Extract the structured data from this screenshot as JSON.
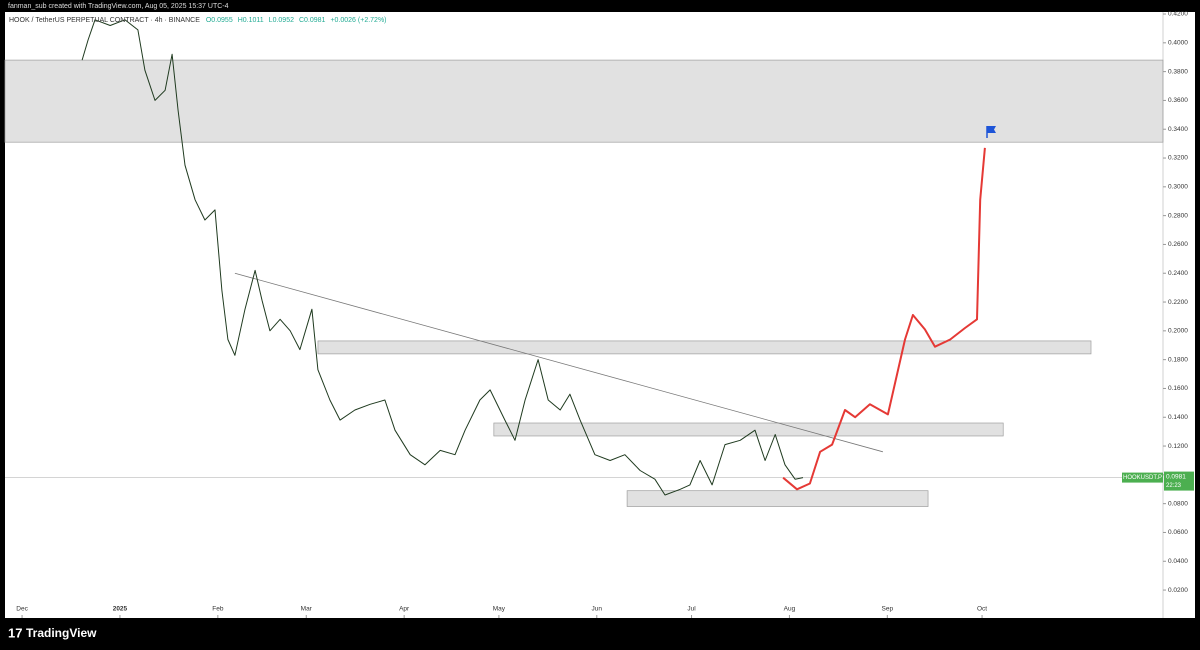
{
  "chart_data": {
    "type": "line",
    "attribution": "fanman_sub created with TradingView.com, Aug 05, 2025 15:37 UTC-4",
    "title": "HOOK / TetherUS PERPETUAL CONTRACT · 4h · BINANCE",
    "ohlc": [
      "O0.0955",
      "H0.1011",
      "L0.0952",
      "C0.0981",
      "+0.0026 (+2.72%)"
    ],
    "ohlc_color": "#22ab94",
    "brand": "TradingView",
    "xlim": [
      -5.4,
      361.3
    ],
    "xticks": [
      {
        "value": 0,
        "label": "Dec"
      },
      {
        "value": 31,
        "label": "2025"
      },
      {
        "value": 62,
        "label": "Feb"
      },
      {
        "value": 90,
        "label": "Mar"
      },
      {
        "value": 121,
        "label": "Apr"
      },
      {
        "value": 151,
        "label": "May"
      },
      {
        "value": 182,
        "label": "Jun"
      },
      {
        "value": 212,
        "label": "Jul"
      },
      {
        "value": 243,
        "label": "Aug"
      },
      {
        "value": 274,
        "label": "Sep"
      },
      {
        "value": 304,
        "label": "Oct"
      }
    ],
    "ylim": [
      0.0006,
      0.4214
    ],
    "yticks": [
      {
        "value": 0.42,
        "label": "0.4200"
      },
      {
        "value": 0.4,
        "label": "0.4000"
      },
      {
        "value": 0.38,
        "label": "0.3800"
      },
      {
        "value": 0.36,
        "label": "0.3600"
      },
      {
        "value": 0.34,
        "label": "0.3400"
      },
      {
        "value": 0.32,
        "label": "0.3200"
      },
      {
        "value": 0.3,
        "label": "0.3000"
      },
      {
        "value": 0.28,
        "label": "0.2800"
      },
      {
        "value": 0.26,
        "label": "0.2600"
      },
      {
        "value": 0.24,
        "label": "0.2400"
      },
      {
        "value": 0.22,
        "label": "0.2200"
      },
      {
        "value": 0.2,
        "label": "0.2000"
      },
      {
        "value": 0.18,
        "label": "0.1800"
      },
      {
        "value": 0.16,
        "label": "0.1600"
      },
      {
        "value": 0.14,
        "label": "0.1400"
      },
      {
        "value": 0.12,
        "label": "0.1200"
      },
      {
        "value": 0.1,
        "label": "0.1000"
      },
      {
        "value": 0.08,
        "label": "0.0800"
      },
      {
        "value": 0.06,
        "label": "0.0600"
      },
      {
        "value": 0.04,
        "label": "0.0400"
      },
      {
        "value": 0.02,
        "label": "0.0200"
      }
    ],
    "series": [
      {
        "color": "#1f3a1f",
        "x": [
          19.0,
          20.9,
          23.1,
          27.9,
          32.6,
          36.7,
          38.9,
          42.1,
          45.3,
          47.5,
          49.4,
          51.6,
          54.8,
          57.9,
          61.1,
          63.3,
          65.2,
          67.4,
          70.6,
          73.8,
          76.0,
          78.5,
          81.7,
          84.9,
          88.0,
          91.8,
          93.7,
          97.5,
          100.7,
          105.4,
          110.2,
          114.9,
          118.1,
          122.9,
          127.6,
          132.4,
          137.1,
          140.3,
          145.0,
          148.2,
          152.9,
          156.1,
          159.3,
          163.4,
          166.6,
          170.4,
          173.5,
          176.7,
          181.4,
          186.2,
          190.9,
          195.7,
          200.4,
          203.6,
          208.4,
          211.5,
          214.7,
          218.5,
          222.6,
          227.4,
          232.1,
          235.3,
          238.5,
          241.6,
          244.8,
          247.3
        ],
        "values": [
          0.388,
          0.402,
          0.416,
          0.412,
          0.416,
          0.409,
          0.381,
          0.36,
          0.367,
          0.392,
          0.353,
          0.315,
          0.291,
          0.277,
          0.284,
          0.228,
          0.194,
          0.183,
          0.215,
          0.242,
          0.221,
          0.2,
          0.208,
          0.2,
          0.187,
          0.215,
          0.173,
          0.152,
          0.138,
          0.145,
          0.149,
          0.152,
          0.131,
          0.114,
          0.107,
          0.117,
          0.114,
          0.131,
          0.152,
          0.159,
          0.138,
          0.124,
          0.152,
          0.18,
          0.152,
          0.145,
          0.156,
          0.138,
          0.114,
          0.11,
          0.114,
          0.103,
          0.097,
          0.086,
          0.09,
          0.093,
          0.11,
          0.093,
          0.121,
          0.124,
          0.131,
          0.11,
          0.128,
          0.107,
          0.097,
          0.0981
        ]
      },
      {
        "color": "#e53935",
        "x": [
          241.0,
          245.4,
          249.5,
          252.7,
          256.5,
          260.6,
          263.8,
          268.5,
          274.2,
          279.6,
          282.1,
          285.9,
          289.1,
          293.9,
          298.6,
          302.4,
          303.4,
          304.9
        ],
        "values": [
          0.098,
          0.09,
          0.094,
          0.116,
          0.121,
          0.145,
          0.14,
          0.149,
          0.142,
          0.194,
          0.211,
          0.201,
          0.189,
          0.194,
          0.202,
          0.208,
          0.291,
          0.327
        ]
      }
    ],
    "zones": [
      {
        "low": 0.331,
        "high": 0.388,
        "start": -5.4,
        "end": 361.3
      },
      {
        "low": 0.184,
        "high": 0.193,
        "start": 93.7,
        "end": 338.5
      },
      {
        "low": 0.127,
        "high": 0.136,
        "start": 149.4,
        "end": 310.7
      },
      {
        "low": 0.078,
        "high": 0.089,
        "start": 191.6,
        "end": 286.9
      }
    ],
    "trendline": {
      "x": [
        67.4,
        272.6
      ],
      "values": [
        0.24,
        0.116
      ]
    },
    "last_price": {
      "value": 0.0981,
      "label": "0.0981",
      "symbol": "HOOKUSDT.P",
      "countdown": "22:23",
      "color": "#4caf50"
    }
  }
}
